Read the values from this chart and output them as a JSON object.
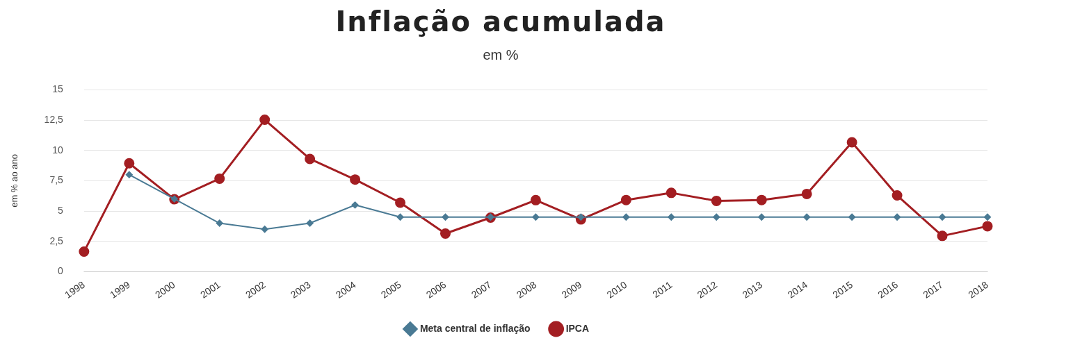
{
  "chart_data": {
    "type": "line",
    "title": "Inflação acumulada",
    "subtitle": "em %",
    "ylabel": "em % ao ano",
    "categories": [
      "1998",
      "1999",
      "2000",
      "2001",
      "2002",
      "2003",
      "2004",
      "2005",
      "2006",
      "2007",
      "2008",
      "2009",
      "2010",
      "2011",
      "2012",
      "2013",
      "2014",
      "2015",
      "2016",
      "2017",
      "2018"
    ],
    "series": [
      {
        "name": "IPCA",
        "color": "#a31e22",
        "marker": "circle",
        "values": [
          1.65,
          8.94,
          5.97,
          7.67,
          12.53,
          9.3,
          7.6,
          5.69,
          3.14,
          4.46,
          5.9,
          4.31,
          5.91,
          6.5,
          5.84,
          5.91,
          6.41,
          10.67,
          6.29,
          2.95,
          3.75
        ]
      },
      {
        "name": "Meta central de inflação",
        "color": "#4a7a94",
        "marker": "diamond",
        "values": [
          null,
          8,
          6,
          4,
          3.5,
          4,
          5.5,
          4.5,
          4.5,
          4.5,
          4.5,
          4.5,
          4.5,
          4.5,
          4.5,
          4.5,
          4.5,
          4.5,
          4.5,
          4.5,
          4.5
        ]
      }
    ],
    "ylim": [
      0,
      15
    ],
    "yticks": [
      0,
      {
        "value": 2.5,
        "label": "2,5"
      },
      5,
      {
        "value": 7.5,
        "label": "7,5"
      },
      10,
      {
        "value": 12.5,
        "label": "12,5"
      },
      15
    ],
    "grid": "y",
    "legend": "bottom",
    "line_style": "solid"
  }
}
